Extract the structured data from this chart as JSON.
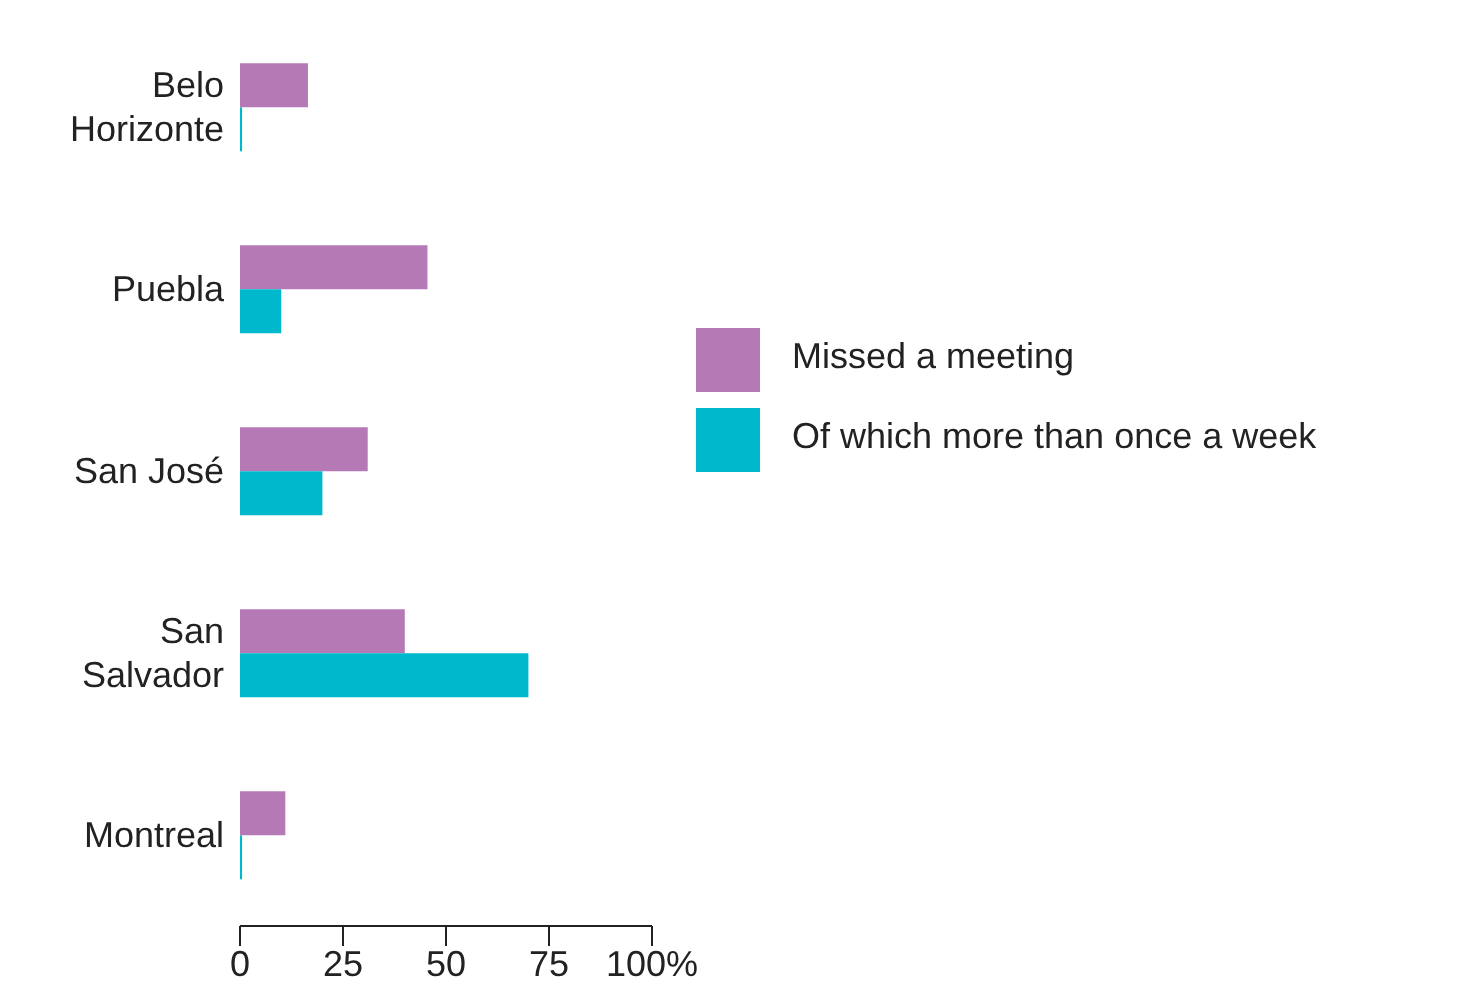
{
  "chart_data": {
    "type": "bar",
    "orientation": "horizontal",
    "categories": [
      "Belo Horizonte",
      "Puebla",
      "San José",
      "San Salvador",
      "Montreal"
    ],
    "series": [
      {
        "name": "Missed a meeting",
        "color": "#b57ab5",
        "values": [
          16.5,
          45.5,
          31,
          40,
          11
        ]
      },
      {
        "name": "Of which more than once a week",
        "color": "#00b8cc",
        "values": [
          0.5,
          10,
          20,
          70,
          0.5
        ]
      }
    ],
    "xlim": [
      0,
      100
    ],
    "xticks": [
      0,
      25,
      50,
      75,
      {
        "value": 100,
        "label": "100%"
      }
    ],
    "grid": false,
    "legend": "right"
  }
}
